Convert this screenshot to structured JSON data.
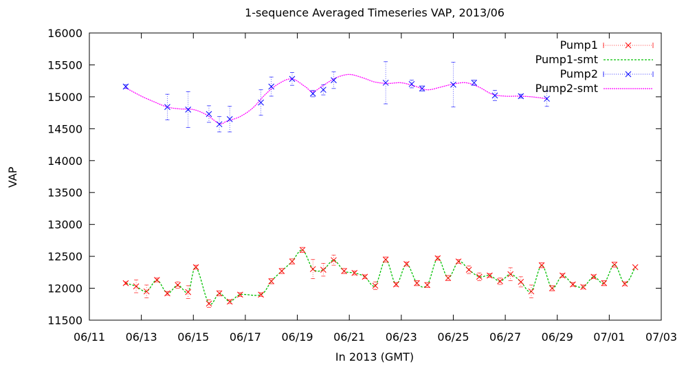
{
  "chart_data": {
    "type": "line",
    "title": "1-sequence Averaged Timeseries VAP, 2013/06",
    "xlabel": "In 2013 (GMT)",
    "ylabel": "VAP",
    "xlim": [
      11,
      33
    ],
    "ylim": [
      11500,
      16000
    ],
    "x_ticks": [
      {
        "v": 11,
        "label": "06/11"
      },
      {
        "v": 13,
        "label": "06/13"
      },
      {
        "v": 15,
        "label": "06/15"
      },
      {
        "v": 17,
        "label": "06/17"
      },
      {
        "v": 19,
        "label": "06/19"
      },
      {
        "v": 21,
        "label": "06/21"
      },
      {
        "v": 23,
        "label": "06/23"
      },
      {
        "v": 25,
        "label": "06/25"
      },
      {
        "v": 27,
        "label": "06/27"
      },
      {
        "v": 29,
        "label": "06/29"
      },
      {
        "v": 31,
        "label": "07/01"
      },
      {
        "v": 33,
        "label": "07/03"
      }
    ],
    "y_ticks": [
      11500,
      12000,
      12500,
      13000,
      13500,
      14000,
      14500,
      15000,
      15500,
      16000
    ],
    "x_unit_note": "x values are days of June 2013 (31 = 07/01)",
    "legend": "top-right",
    "colors": {
      "pump1": "#ff0000",
      "pump1_smt": "#00c000",
      "pump2": "#0000ff",
      "pump2_smt": "#ff00ff",
      "axis": "#000000"
    },
    "series": [
      {
        "name": "Pump1",
        "x": [
          12.4,
          12.8,
          13.2,
          13.6,
          14.0,
          14.4,
          14.8,
          15.1,
          15.6,
          16.0,
          16.4,
          16.8,
          17.6,
          18.0,
          18.4,
          18.8,
          19.2,
          19.6,
          20.0,
          20.4,
          20.8,
          21.2,
          21.6,
          22.0,
          22.4,
          22.8,
          23.2,
          23.6,
          24.0,
          24.4,
          24.8,
          25.2,
          25.6,
          26.0,
          26.4,
          26.8,
          27.2,
          27.6,
          28.0,
          28.4,
          28.8,
          29.2,
          29.6,
          30.0,
          30.4,
          30.8,
          31.2,
          31.6
        ],
        "y": [
          12080,
          12030,
          11950,
          12130,
          11920,
          12050,
          11940,
          12330,
          11760,
          11920,
          11790,
          11900,
          11900,
          12110,
          12270,
          12420,
          12600,
          12300,
          12290,
          12440,
          12270,
          12240,
          12180,
          12040,
          12450,
          12060,
          12380,
          12080,
          12050,
          12470,
          12160,
          12420,
          12290,
          12180,
          12200,
          12110,
          12220,
          12100,
          11950,
          12360,
          12000,
          12200,
          12060,
          12020,
          12180,
          12080,
          12370,
          12070
        ],
        "y_extra": [
          {
            "x": 32.0,
            "y": 12330
          }
        ],
        "yerr": [
          20,
          100,
          100,
          30,
          30,
          50,
          100,
          30,
          60,
          40,
          30,
          30,
          30,
          40,
          40,
          40,
          40,
          150,
          100,
          80,
          40,
          30,
          30,
          60,
          40,
          30,
          30,
          40,
          40,
          30,
          40,
          30,
          60,
          60,
          30,
          50,
          100,
          80,
          100,
          40,
          40,
          30,
          30,
          30,
          30,
          40,
          40,
          30
        ]
      },
      {
        "name": "Pump1-smt",
        "smooth_of": "Pump1"
      },
      {
        "name": "Pump2",
        "x": [
          12.4,
          14.0,
          14.8,
          15.6,
          16.0,
          16.4,
          17.6,
          18.0,
          18.8,
          19.6,
          20.0,
          20.4,
          22.4,
          23.4,
          23.8,
          25.0,
          25.8,
          26.6,
          27.6,
          28.6
        ],
        "y": [
          15160,
          14840,
          14800,
          14730,
          14570,
          14650,
          14910,
          15160,
          15280,
          15050,
          15110,
          15260,
          15220,
          15200,
          15130,
          15190,
          15220,
          15020,
          15010,
          14970
        ],
        "yerr": [
          30,
          200,
          280,
          130,
          120,
          200,
          200,
          150,
          100,
          50,
          80,
          130,
          330,
          60,
          40,
          350,
          40,
          80,
          30,
          120
        ]
      },
      {
        "name": "Pump2-smt",
        "smooth": {
          "x": [
            12.4,
            13.0,
            13.5,
            14.0,
            14.5,
            15.0,
            15.5,
            16.0,
            16.3,
            16.8,
            17.3,
            17.8,
            18.3,
            18.8,
            19.3,
            19.6,
            20.0,
            20.5,
            21.0,
            21.5,
            22.0,
            22.5,
            23.0,
            23.5,
            24.0,
            24.5,
            25.0,
            25.5,
            26.0,
            26.5,
            27.0,
            27.5,
            28.0,
            28.6
          ],
          "y": [
            15140,
            15010,
            14920,
            14840,
            14810,
            14800,
            14720,
            14580,
            14620,
            14690,
            14830,
            15050,
            15210,
            15280,
            15160,
            15080,
            15180,
            15300,
            15350,
            15300,
            15230,
            15210,
            15220,
            15170,
            15110,
            15150,
            15200,
            15220,
            15150,
            15040,
            15010,
            15010,
            15000,
            14970
          ]
        }
      }
    ]
  }
}
